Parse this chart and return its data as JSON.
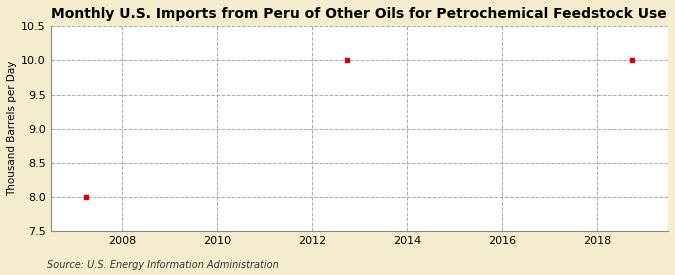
{
  "title": "Monthly U.S. Imports from Peru of Other Oils for Petrochemical Feedstock Use",
  "ylabel": "Thousand Barrels per Day",
  "source": "Source: U.S. Energy Information Administration",
  "fig_bg_color": "#F5EDCE",
  "plot_bg_color": "#FFFFFF",
  "data_x": [
    2007.25,
    2012.75,
    2018.75
  ],
  "data_y": [
    8.0,
    10.0,
    10.0
  ],
  "point_color": "#CC0000",
  "point_marker": "s",
  "point_size": 12,
  "xlim": [
    2006.5,
    2019.5
  ],
  "ylim": [
    7.5,
    10.5
  ],
  "yticks": [
    7.5,
    8.0,
    8.5,
    9.0,
    9.5,
    10.0,
    10.5
  ],
  "xticks": [
    2008,
    2010,
    2012,
    2014,
    2016,
    2018
  ],
  "grid_color": "#AAAAAA",
  "grid_linestyle": "--",
  "grid_linewidth": 0.7,
  "vgrid_positions": [
    2008,
    2010,
    2012,
    2014,
    2016,
    2018
  ],
  "title_fontsize": 10,
  "ylabel_fontsize": 7.5,
  "tick_fontsize": 8,
  "source_fontsize": 7,
  "spine_color": "#888888",
  "axis_linewidth": 0.8
}
